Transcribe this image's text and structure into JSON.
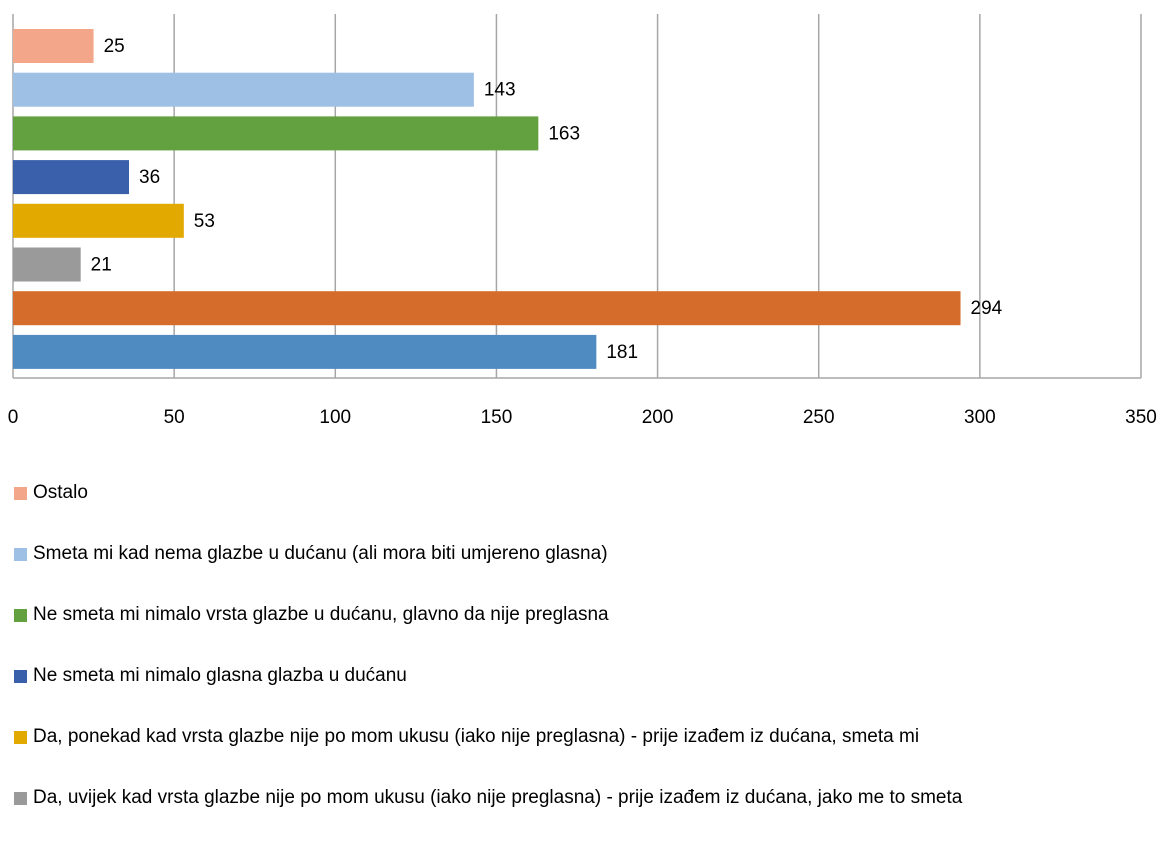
{
  "chart_data": {
    "type": "hbar",
    "series": [
      {
        "name": "Ostalo",
        "color": "#f4a68b",
        "values": [
          25
        ]
      },
      {
        "name": "Smeta mi kad nema glazbe u dućanu (ali mora biti umjereno glasna)",
        "color": "#9dc0e4",
        "values": [
          143
        ]
      },
      {
        "name": "Ne smeta mi nimalo vrsta glazbe u dućanu, glavno da nije preglasna",
        "color": "#62a040",
        "values": [
          163
        ]
      },
      {
        "name": "Ne smeta mi nimalo glasna glazba u dućanu",
        "color": "#3a5fab",
        "values": [
          36
        ]
      },
      {
        "name": "Da, ponekad kad vrsta glazbe nije po mom ukusu (iako nije preglasna) -  prije izađem iz dućana, smeta mi",
        "color": "#e2a900",
        "values": [
          53
        ]
      },
      {
        "name": "Da, uvijek kad vrsta glazbe nije po mom ukusu (iako nije preglasna) -  prije izađem iz dućana, jako me to smeta",
        "color": "#9a9a9a",
        "values": [
          21
        ]
      },
      {
        "name": null,
        "color": "#d56c2c",
        "values": [
          294
        ]
      },
      {
        "name": null,
        "color": "#4f8bc1",
        "values": [
          181
        ]
      }
    ],
    "xlim": [
      0,
      350
    ],
    "xticks": [
      0,
      50,
      100,
      150,
      200,
      250,
      300,
      350
    ],
    "grid": true
  }
}
